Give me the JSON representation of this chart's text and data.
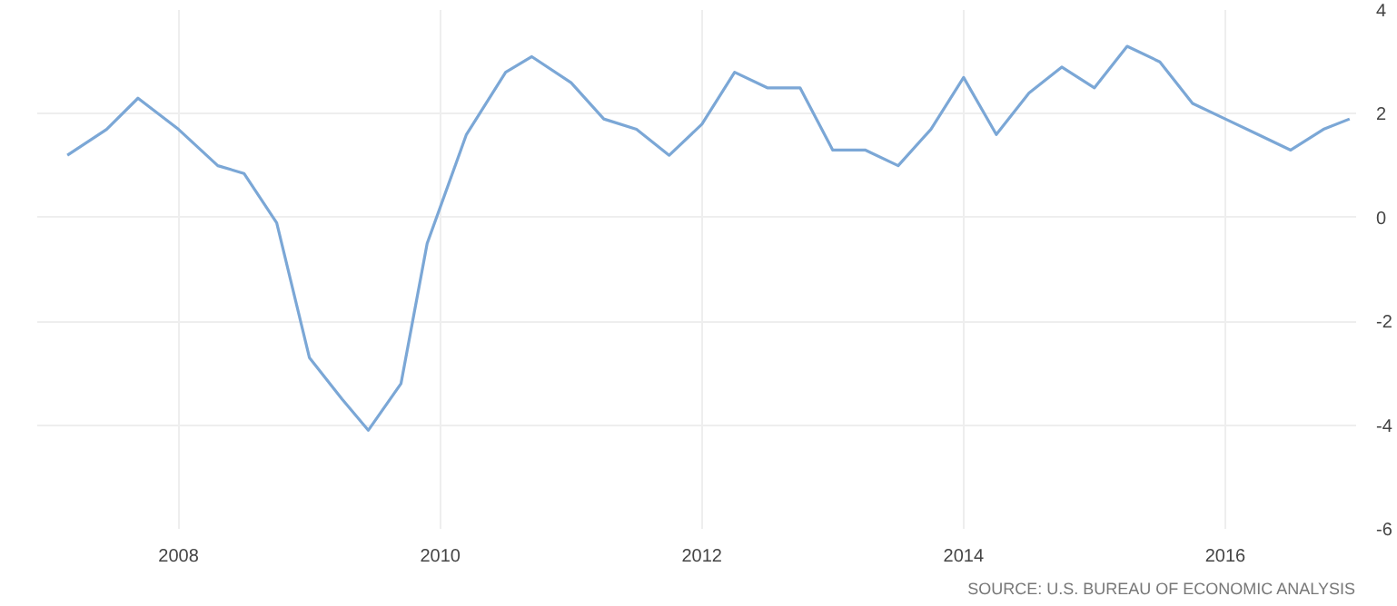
{
  "chart_data": {
    "type": "line",
    "x": [
      2007.15,
      2007.45,
      2007.69,
      2008.0,
      2008.3,
      2008.5,
      2008.75,
      2009.0,
      2009.25,
      2009.45,
      2009.7,
      2009.9,
      2010.2,
      2010.5,
      2010.7,
      2011.0,
      2011.25,
      2011.5,
      2011.75,
      2012.0,
      2012.25,
      2012.5,
      2012.75,
      2013.0,
      2013.25,
      2013.5,
      2013.75,
      2014.0,
      2014.25,
      2014.5,
      2014.75,
      2015.0,
      2015.25,
      2015.5,
      2015.75,
      2016.0,
      2016.25,
      2016.5,
      2016.75,
      2016.95
    ],
    "series": [
      {
        "color": "#7ba7d6",
        "values": [
          1.2,
          1.7,
          2.3,
          1.7,
          1.0,
          0.85,
          -0.1,
          -2.7,
          -3.5,
          -4.1,
          -3.2,
          -0.5,
          1.6,
          2.8,
          3.1,
          2.6,
          1.9,
          1.7,
          1.2,
          1.8,
          2.8,
          2.5,
          2.5,
          1.3,
          1.3,
          1.0,
          1.7,
          2.7,
          1.6,
          2.4,
          2.9,
          2.5,
          3.3,
          3.0,
          2.2,
          1.9,
          1.6,
          1.3,
          1.7,
          1.9
        ]
      }
    ],
    "xlim": [
      2006.92,
      2017.0
    ],
    "ylim": [
      -6,
      4
    ],
    "xticks": [
      2008,
      2010,
      2012,
      2014,
      2016
    ],
    "yticks": [
      -6,
      -4,
      -2,
      0,
      2,
      4
    ],
    "grid": true,
    "marker": "none",
    "line_style": "solid",
    "annotations": [
      "SOURCE: U.S. BUREAU OF ECONOMIC ANALYSIS"
    ]
  }
}
